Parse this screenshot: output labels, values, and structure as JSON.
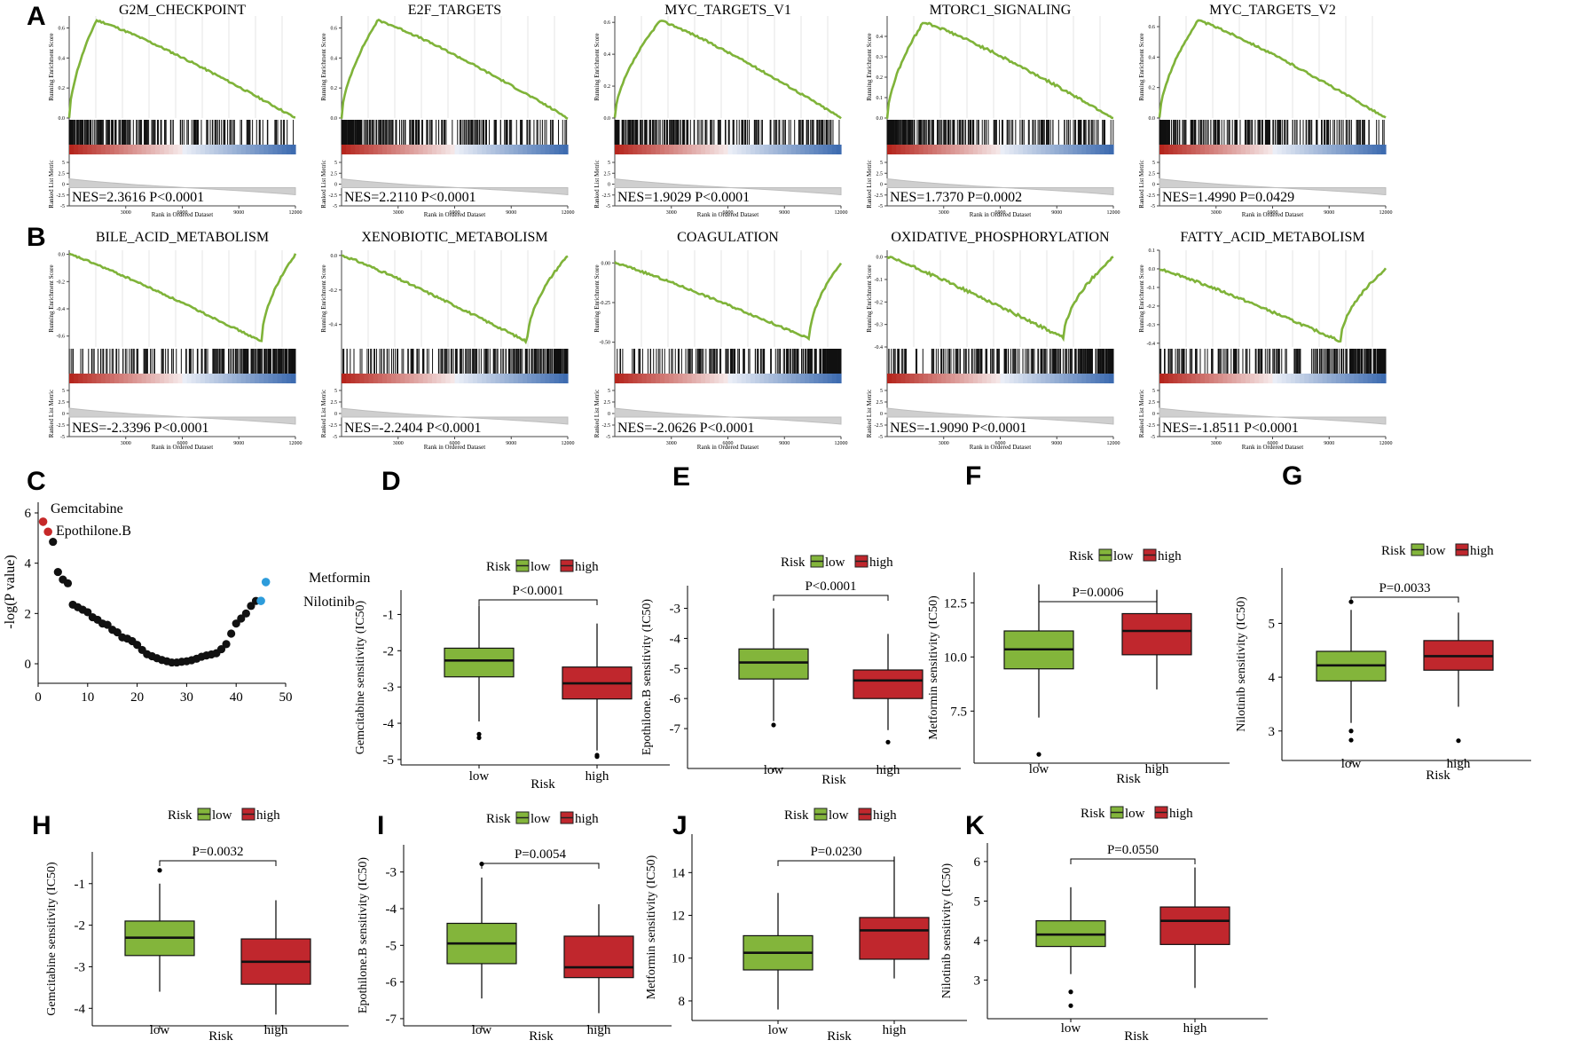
{
  "colors": {
    "curve": "#7fb339",
    "low": "#83b53b",
    "high": "#c0272d",
    "heat_red": "#b5261e",
    "heat_blue": "#3e6cb0",
    "label_red": "#c62828",
    "label_blue": "#2d9cdb",
    "dot": "#111111"
  },
  "gsea_common": {
    "y_label": "Running Enrichment Score",
    "metric_label": "Ranked List Metric",
    "x_label": "Rank in Ordered Dataset",
    "x_ticks": [
      "3000",
      "6000",
      "9000",
      "12000"
    ],
    "metric_ticks": [
      "5",
      "2.5",
      "0",
      "-2.5",
      "-5"
    ]
  },
  "panels": {
    "A": "A",
    "B": "B",
    "C": "C",
    "D": "D",
    "E": "E",
    "F": "F",
    "G": "G",
    "H": "H",
    "I": "I",
    "J": "J",
    "K": "K"
  },
  "chart_data": [
    {
      "type": "line",
      "panel": "A",
      "plots": [
        {
          "title": "G2M_CHECKPOINT",
          "annotation": "NES=2.3616 P<0.0001",
          "direction": "up",
          "peak": 0.12,
          "max": 0.65,
          "y_ticks": [
            "0.6",
            "0.4",
            "0.2",
            "0.0"
          ],
          "ylim": [
            0,
            0.68
          ]
        },
        {
          "title": "E2F_TARGETS",
          "annotation": "NES=2.2110 P<0.0001",
          "direction": "up",
          "peak": 0.16,
          "max": 0.65,
          "y_ticks": [
            "0.6",
            "0.4",
            "0.2",
            "0.0"
          ],
          "ylim": [
            0,
            0.68
          ]
        },
        {
          "title": "MYC_TARGETS_V1",
          "annotation": "NES=1.9029 P<0.0001",
          "direction": "up",
          "peak": 0.2,
          "max": 0.61,
          "y_ticks": [
            "0.6",
            "0.4",
            "0.2",
            "0.0"
          ],
          "ylim": [
            0,
            0.64
          ]
        },
        {
          "title": "MTORC1_SIGNALING",
          "annotation": "NES=1.7370 P=0.0002",
          "direction": "up",
          "peak": 0.16,
          "max": 0.47,
          "y_ticks": [
            "0.4",
            "0.3",
            "0.2",
            "0.1",
            "0.0"
          ],
          "ylim": [
            0,
            0.5
          ]
        },
        {
          "title": "MYC_TARGETS_V2",
          "annotation": "NES=1.4990 P=0.0429",
          "direction": "up",
          "peak": 0.17,
          "max": 0.64,
          "y_ticks": [
            "0.6",
            "0.4",
            "0.2",
            "0.0"
          ],
          "ylim": [
            0,
            0.67
          ]
        }
      ]
    },
    {
      "type": "line",
      "panel": "B",
      "plots": [
        {
          "title": "BILE_ACID_METABOLISM",
          "annotation": "NES=-2.3396 P<0.0001",
          "direction": "down",
          "peak": 0.85,
          "min": -0.64,
          "y_ticks": [
            "0.0",
            "-0.2",
            "-0.4",
            "-0.6"
          ],
          "ylim": [
            -0.68,
            0.03
          ]
        },
        {
          "title": "XENOBIOTIC_METABOLISM",
          "annotation": "NES=-2.2404 P<0.0001",
          "direction": "down",
          "peak": 0.82,
          "min": -0.5,
          "y_ticks": [
            "0.0",
            "-0.2",
            "-0.4"
          ],
          "ylim": [
            -0.53,
            0.03
          ]
        },
        {
          "title": "COAGULATION",
          "annotation": "NES=-2.0626 P<0.0001",
          "direction": "down",
          "peak": 0.86,
          "min": -0.48,
          "y_ticks": [
            "0.00",
            "-0.25",
            "-0.50"
          ],
          "ylim": [
            -0.53,
            0.08
          ]
        },
        {
          "title": "OXIDATIVE_PHOSPHORYLATION",
          "annotation": "NES=-1.9090 P<0.0001",
          "direction": "down",
          "peak": 0.78,
          "min": -0.36,
          "y_ticks": [
            "0.0",
            "-0.1",
            "-0.2",
            "-0.3",
            "-0.4"
          ],
          "ylim": [
            -0.4,
            0.03
          ]
        },
        {
          "title": "FATTY_ACID_METABOLISM",
          "annotation": "NES=-1.8511 P<0.0001",
          "direction": "down",
          "peak": 0.8,
          "min": -0.39,
          "y_ticks": [
            "0.1",
            "0.0",
            "-0.1",
            "-0.2",
            "-0.3",
            "-0.4"
          ],
          "ylim": [
            -0.42,
            0.1
          ]
        }
      ]
    },
    {
      "type": "scatter",
      "panel": "C",
      "ylabel": "-log(P value)",
      "xlim": [
        0,
        50
      ],
      "ylim": [
        0,
        6
      ],
      "x_ticks": [
        0,
        10,
        20,
        30,
        40,
        50
      ],
      "y_ticks": [
        0,
        2,
        4,
        6
      ],
      "points": [
        [
          1,
          5.65
        ],
        [
          2,
          5.25
        ],
        [
          3,
          4.85
        ],
        [
          4,
          3.65
        ],
        [
          5,
          3.35
        ],
        [
          6,
          3.2
        ],
        [
          7,
          2.35
        ],
        [
          8,
          2.25
        ],
        [
          9,
          2.15
        ],
        [
          10,
          2.05
        ],
        [
          11,
          1.85
        ],
        [
          12,
          1.75
        ],
        [
          13,
          1.6
        ],
        [
          14,
          1.55
        ],
        [
          15,
          1.35
        ],
        [
          16,
          1.25
        ],
        [
          17,
          1.05
        ],
        [
          18,
          1.0
        ],
        [
          19,
          0.9
        ],
        [
          20,
          0.75
        ],
        [
          21,
          0.55
        ],
        [
          22,
          0.38
        ],
        [
          23,
          0.3
        ],
        [
          24,
          0.22
        ],
        [
          25,
          0.15
        ],
        [
          26,
          0.1
        ],
        [
          27,
          0.05
        ],
        [
          28,
          0.05
        ],
        [
          29,
          0.08
        ],
        [
          30,
          0.1
        ],
        [
          31,
          0.14
        ],
        [
          32,
          0.2
        ],
        [
          33,
          0.28
        ],
        [
          34,
          0.33
        ],
        [
          35,
          0.37
        ],
        [
          36,
          0.42
        ],
        [
          37,
          0.58
        ],
        [
          38,
          0.78
        ],
        [
          39,
          1.2
        ],
        [
          40,
          1.6
        ],
        [
          41,
          1.8
        ],
        [
          42,
          2.0
        ],
        [
          43,
          2.3
        ],
        [
          44,
          2.5
        ]
      ],
      "highlights": [
        {
          "label": "Gemcitabine",
          "x": 1,
          "y": 5.65,
          "color": "red"
        },
        {
          "label": "Epothilone.B",
          "x": 2,
          "y": 5.25,
          "color": "red"
        },
        {
          "label": "Metformin",
          "x": 46,
          "y": 3.25,
          "color": "blue"
        },
        {
          "label": "Nilotinib",
          "x": 45,
          "y": 2.5,
          "color": "blue"
        }
      ]
    },
    {
      "type": "box",
      "panel": "D",
      "ylabel": "Gemcitabine sensitivity (IC50)",
      "xlabel": "Risk",
      "legend_title": "Risk",
      "categories": [
        "low",
        "high"
      ],
      "p_label": "P<0.0001",
      "ylim": [
        -5.1,
        -0.5
      ],
      "y_ticks": [
        "-1",
        "-2",
        "-3",
        "-4",
        "-5"
      ],
      "series": [
        {
          "name": "low",
          "min": -3.95,
          "q1": -2.72,
          "median": -2.27,
          "q3": -1.93,
          "max": -0.75,
          "outliers": [
            -4.3,
            -4.4
          ]
        },
        {
          "name": "high",
          "min": -4.75,
          "q1": -3.33,
          "median": -2.9,
          "q3": -2.45,
          "max": -1.25,
          "outliers": [
            -4.88,
            -4.92
          ]
        }
      ]
    },
    {
      "type": "box",
      "panel": "E",
      "ylabel": "Epothilone.B sensitivity (IC50)",
      "xlabel": "Risk",
      "legend_title": "Risk",
      "categories": [
        "low",
        "high"
      ],
      "p_label": "P<0.0001",
      "ylim": [
        -7.5,
        -2.6
      ],
      "y_ticks": [
        "-3",
        "-4",
        "-5",
        "-6",
        "-7"
      ],
      "series": [
        {
          "name": "low",
          "min": -6.75,
          "q1": -5.35,
          "median": -4.8,
          "q3": -4.35,
          "max": -3.0,
          "outliers": [
            -6.88
          ]
        },
        {
          "name": "high",
          "min": -7.05,
          "q1": -6.0,
          "median": -5.4,
          "q3": -5.05,
          "max": -3.85,
          "outliers": [
            -7.45
          ]
        }
      ]
    },
    {
      "type": "box",
      "panel": "F",
      "ylabel": "Metformin sensitivity (IC50)",
      "xlabel": "Risk",
      "legend_title": "Risk",
      "categories": [
        "low",
        "high"
      ],
      "p_label": "P=0.0006",
      "ylim": [
        5.3,
        13.7
      ],
      "y_ticks": [
        "12.5",
        "10.0",
        "7.5"
      ],
      "series": [
        {
          "name": "low",
          "min": 7.2,
          "q1": 9.45,
          "median": 10.35,
          "q3": 11.2,
          "max": 13.35,
          "outliers": [
            5.5
          ]
        },
        {
          "name": "high",
          "min": 8.5,
          "q1": 10.1,
          "median": 11.2,
          "q3": 12.0,
          "max": 13.1,
          "outliers": []
        }
      ]
    },
    {
      "type": "box",
      "panel": "G",
      "ylabel": "Nilotinib sensitivity (IC50)",
      "xlabel": "Risk",
      "legend_title": "Risk",
      "categories": [
        "low",
        "high"
      ],
      "p_label": "P=0.0033",
      "ylim": [
        2.65,
        5.7
      ],
      "y_ticks": [
        "5",
        "4",
        "3"
      ],
      "series": [
        {
          "name": "low",
          "min": 3.15,
          "q1": 3.93,
          "median": 4.22,
          "q3": 4.48,
          "max": 5.25,
          "outliers": [
            5.4,
            3.0,
            2.83
          ]
        },
        {
          "name": "high",
          "min": 3.45,
          "q1": 4.13,
          "median": 4.39,
          "q3": 4.68,
          "max": 5.2,
          "outliers": [
            2.82
          ]
        }
      ]
    },
    {
      "type": "box",
      "panel": "H",
      "ylabel": "Gemcitabine sensitivity (IC50)",
      "xlabel": "Risk",
      "legend_title": "Risk",
      "categories": [
        "low",
        "high"
      ],
      "p_label": "P=0.0032",
      "ylim": [
        -4.25,
        -0.45
      ],
      "y_ticks": [
        "-1",
        "-2",
        "-3",
        "-4"
      ],
      "series": [
        {
          "name": "low",
          "min": -3.6,
          "q1": -2.73,
          "median": -2.3,
          "q3": -1.9,
          "max": -1.0,
          "outliers": [
            -0.68
          ]
        },
        {
          "name": "high",
          "min": -4.15,
          "q1": -3.42,
          "median": -2.88,
          "q3": -2.33,
          "max": -1.4,
          "outliers": []
        }
      ]
    },
    {
      "type": "box",
      "panel": "I",
      "ylabel": "Epothilone.B sensitivity (IC50)",
      "xlabel": "Risk",
      "legend_title": "Risk",
      "categories": [
        "low",
        "high"
      ],
      "p_label": "P=0.0054",
      "ylim": [
        -7.05,
        -2.5
      ],
      "y_ticks": [
        "-3",
        "-4",
        "-5",
        "-6",
        "-7"
      ],
      "series": [
        {
          "name": "low",
          "min": -6.45,
          "q1": -5.5,
          "median": -4.95,
          "q3": -4.4,
          "max": -3.15,
          "outliers": [
            -2.78
          ]
        },
        {
          "name": "high",
          "min": -6.85,
          "q1": -5.88,
          "median": -5.6,
          "q3": -4.75,
          "max": -3.88,
          "outliers": []
        }
      ]
    },
    {
      "type": "box",
      "panel": "J",
      "ylabel": "Metformin sensitivity (IC50)",
      "xlabel": "Risk",
      "legend_title": "Risk",
      "categories": [
        "low",
        "high"
      ],
      "p_label": "P=0.0230",
      "ylim": [
        7.5,
        15.3
      ],
      "y_ticks": [
        "14",
        "12",
        "10",
        "8"
      ],
      "series": [
        {
          "name": "low",
          "min": 7.6,
          "q1": 9.45,
          "median": 10.25,
          "q3": 11.05,
          "max": 13.05,
          "outliers": []
        },
        {
          "name": "high",
          "min": 9.05,
          "q1": 9.95,
          "median": 11.3,
          "q3": 11.9,
          "max": 14.75,
          "outliers": []
        }
      ]
    },
    {
      "type": "box",
      "panel": "K",
      "ylabel": "Nilotinib sensitivity (IC50)",
      "xlabel": "Risk",
      "legend_title": "Risk",
      "categories": [
        "low",
        "high"
      ],
      "p_label": "P=0.0550",
      "ylim": [
        2.2,
        6.2
      ],
      "y_ticks": [
        "6",
        "5",
        "4",
        "3"
      ],
      "series": [
        {
          "name": "low",
          "min": 3.15,
          "q1": 3.85,
          "median": 4.15,
          "q3": 4.5,
          "max": 5.35,
          "outliers": [
            2.7,
            2.35
          ]
        },
        {
          "name": "high",
          "min": 2.8,
          "q1": 3.9,
          "median": 4.5,
          "q3": 4.85,
          "max": 5.85,
          "outliers": []
        }
      ]
    }
  ]
}
